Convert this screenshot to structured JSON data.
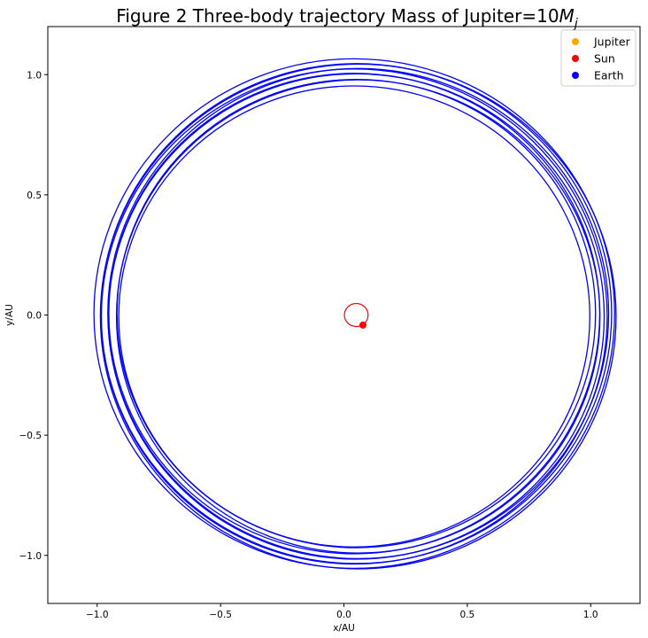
{
  "chart_data": {
    "type": "line",
    "title": "Figure 2 Three-body trajectory  Mass of Jupiter=10",
    "title_math": "M",
    "title_math_sub": "j",
    "xlabel": "x/AU",
    "ylabel": "y/AU",
    "xlim": [
      -1.2,
      1.2
    ],
    "ylim": [
      -1.2,
      1.2
    ],
    "xticks": [
      -1.0,
      -0.5,
      0.0,
      0.5,
      1.0
    ],
    "xtick_labels": [
      "−1.0",
      "−0.5",
      "0.0",
      "0.5",
      "1.0"
    ],
    "yticks": [
      -1.0,
      -0.5,
      0.0,
      0.5,
      1.0
    ],
    "ytick_labels": [
      "−1.0",
      "−0.5",
      "0.0",
      "0.5",
      "1.0"
    ],
    "grid": false,
    "legend_position": "top-right",
    "legend": [
      {
        "label": "Jupiter",
        "color": "#ffa500"
      },
      {
        "label": "Sun",
        "color": "#ff0000"
      },
      {
        "label": "Earth",
        "color": "#0000ff"
      }
    ],
    "series": [
      {
        "name": "Earth",
        "color": "#0000ff",
        "kind": "orbit",
        "radii": [
          0.95,
          0.965,
          0.975,
          0.99,
          1.0,
          1.01,
          1.02,
          1.03,
          1.04,
          1.05
        ],
        "center": [
          0.05,
          0.0
        ],
        "x_extent": [
          -1.0,
          1.11
        ],
        "y_extent": [
          -1.06,
          1.06
        ]
      },
      {
        "name": "Sun",
        "color": "#ff0000",
        "kind": "orbit",
        "center": [
          0.05,
          0.0
        ],
        "radius": 0.048,
        "current_position": [
          0.077,
          -0.042
        ]
      },
      {
        "name": "Jupiter",
        "color": "#ffa500",
        "kind": "point"
      }
    ]
  }
}
